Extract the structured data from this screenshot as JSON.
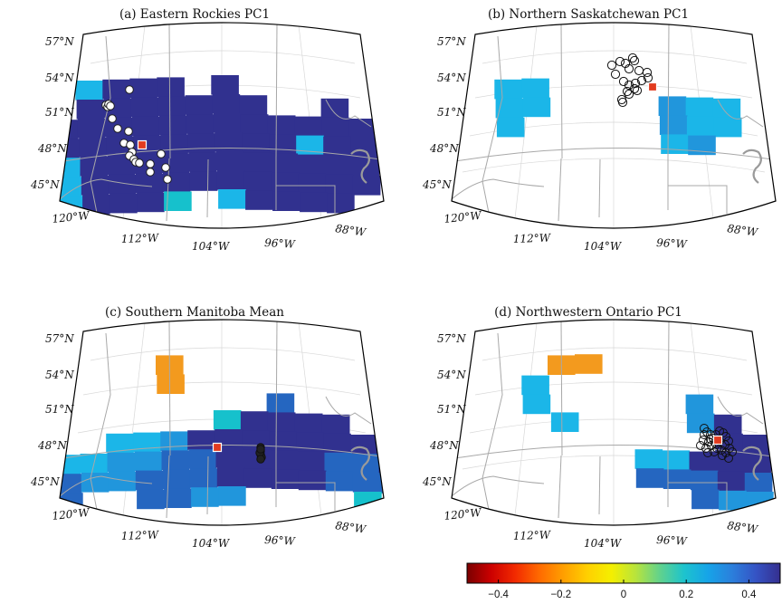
{
  "panels": [
    {
      "title": "(a) Eastern Rockies PC1",
      "lat_labels": [
        "57°N",
        "54°N",
        "51°N",
        "48°N",
        "45°N"
      ],
      "lon_labels": [
        "120°W",
        "112°W",
        "104°W",
        "96°W",
        "88°W"
      ],
      "markers": "white-filled-circles",
      "reference_site_color": "#e23b1f"
    },
    {
      "title": "(b) Northern Saskatchewan PC1",
      "lat_labels": [
        "57°N",
        "54°N",
        "51°N",
        "48°N",
        "45°N"
      ],
      "lon_labels": [
        "120°W",
        "112°W",
        "104°W",
        "96°W",
        "88°W"
      ],
      "markers": "open-circles",
      "reference_site_color": "#e23b1f"
    },
    {
      "title": "(c) Southern Manitoba Mean",
      "lat_labels": [
        "57°N",
        "54°N",
        "51°N",
        "48°N",
        "45°N"
      ],
      "lon_labels": [
        "120°W",
        "112°W",
        "104°W",
        "96°W",
        "88°W"
      ],
      "markers": "dark-filled-circles",
      "reference_site_color": "#e23b1f"
    },
    {
      "title": "(d) Northwestern Ontario PC1",
      "lat_labels": [
        "57°N",
        "54°N",
        "51°N",
        "48°N",
        "45°N"
      ],
      "lon_labels": [
        "120°W",
        "112°W",
        "104°W",
        "96°W",
        "88°W"
      ],
      "markers": "open-circles",
      "reference_site_color": "#e23b1f"
    }
  ],
  "colorbar": {
    "ticks": [
      "−0.4",
      "−0.2",
      "0",
      "0.2",
      "0.4"
    ],
    "tick_values": [
      -0.4,
      -0.2,
      0,
      0.2,
      0.4
    ],
    "range": [
      -0.5,
      0.5
    ],
    "colors": [
      "#7a0000",
      "#cc0000",
      "#f22a00",
      "#ff6a00",
      "#ff9f00",
      "#ffd000",
      "#f4ef00",
      "#b8e43c",
      "#61d28c",
      "#1dc4cd",
      "#16a4e8",
      "#2b7fdc",
      "#3553c4",
      "#352f8f"
    ]
  },
  "palette": {
    "orange": "#f39a1e",
    "cyan": "#1bb6e8",
    "light_blue": "#2196dc",
    "mid_blue": "#2566c0",
    "navy": "#31318f",
    "teal": "#16c1cc",
    "land_line": "#a8a8a8"
  }
}
